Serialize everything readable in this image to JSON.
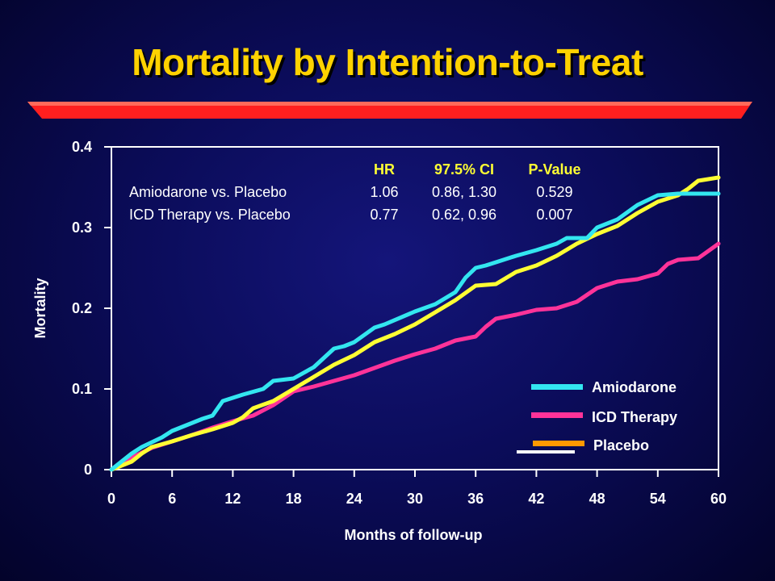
{
  "slide": {
    "title": "Mortality by Intention-to-Treat",
    "colors": {
      "background": "#0b0c5a",
      "title": "#ffd200",
      "title_bar": "#ff1f1f",
      "text": "#ffffff"
    }
  },
  "stats_table": {
    "headers": [
      "HR",
      "97.5% CI",
      "P-Value"
    ],
    "rows": [
      {
        "label": "Amiodarone vs. Placebo",
        "hr": "1.06",
        "ci": "0.86, 1.30",
        "p": "0.529"
      },
      {
        "label": "ICD Therapy vs. Placebo",
        "hr": "0.77",
        "ci": "0.62, 0.96",
        "p": "0.007"
      }
    ]
  },
  "chart_data": {
    "type": "line",
    "title": "",
    "xlabel": "Months of follow-up",
    "ylabel": "Mortality",
    "xlim": [
      0,
      60
    ],
    "ylim": [
      0,
      0.4
    ],
    "xticks": [
      "0",
      "6",
      "12",
      "18",
      "24",
      "30",
      "36",
      "42",
      "48",
      "54",
      "60"
    ],
    "yticks": [
      "0",
      "0.1",
      "0.2",
      "0.3",
      "0.4"
    ],
    "grid": false,
    "legend_position": "bottom-right",
    "series": [
      {
        "name": "Amiodarone",
        "color": "#33e6f0",
        "x": [
          0,
          2,
          3,
          5,
          6,
          8,
          9,
          10,
          11,
          13,
          15,
          16,
          18,
          20,
          22,
          23,
          24,
          26,
          27,
          30,
          32,
          34,
          35,
          36,
          37,
          38,
          40,
          42,
          44,
          45,
          47,
          48,
          50,
          52,
          54,
          56,
          58,
          60
        ],
        "y": [
          0,
          0.02,
          0.028,
          0.04,
          0.048,
          0.058,
          0.063,
          0.067,
          0.085,
          0.093,
          0.1,
          0.11,
          0.113,
          0.127,
          0.15,
          0.153,
          0.158,
          0.176,
          0.18,
          0.196,
          0.205,
          0.22,
          0.238,
          0.25,
          0.253,
          0.257,
          0.265,
          0.272,
          0.28,
          0.287,
          0.287,
          0.3,
          0.31,
          0.328,
          0.34,
          0.342,
          0.342,
          0.342
        ]
      },
      {
        "name": "ICD Therapy",
        "color": "#ff3399",
        "x": [
          0,
          2,
          4,
          6,
          8,
          10,
          12,
          14,
          16,
          18,
          20,
          22,
          24,
          26,
          28,
          30,
          32,
          34,
          36,
          37,
          38,
          40,
          42,
          44,
          46,
          48,
          50,
          52,
          54,
          55,
          56,
          58,
          60
        ],
        "y": [
          0,
          0.015,
          0.027,
          0.035,
          0.043,
          0.052,
          0.06,
          0.067,
          0.08,
          0.097,
          0.103,
          0.11,
          0.117,
          0.126,
          0.135,
          0.143,
          0.15,
          0.16,
          0.165,
          0.177,
          0.187,
          0.192,
          0.198,
          0.2,
          0.208,
          0.225,
          0.233,
          0.236,
          0.243,
          0.255,
          0.26,
          0.262,
          0.28
        ]
      },
      {
        "name": "Placebo",
        "color": "#ff9900",
        "x": [
          0,
          2,
          3,
          4,
          6,
          8,
          10,
          12,
          13,
          14,
          16,
          18,
          20,
          22,
          24,
          26,
          28,
          30,
          32,
          34,
          36,
          38,
          40,
          42,
          44,
          46,
          48,
          50,
          52,
          54,
          56,
          57,
          58,
          60
        ],
        "y": [
          0,
          0.01,
          0.02,
          0.028,
          0.035,
          0.043,
          0.05,
          0.058,
          0.065,
          0.076,
          0.085,
          0.1,
          0.115,
          0.13,
          0.142,
          0.158,
          0.168,
          0.18,
          0.195,
          0.21,
          0.228,
          0.23,
          0.245,
          0.253,
          0.265,
          0.28,
          0.292,
          0.302,
          0.318,
          0.332,
          0.34,
          0.348,
          0.358,
          0.362
        ]
      }
    ]
  }
}
